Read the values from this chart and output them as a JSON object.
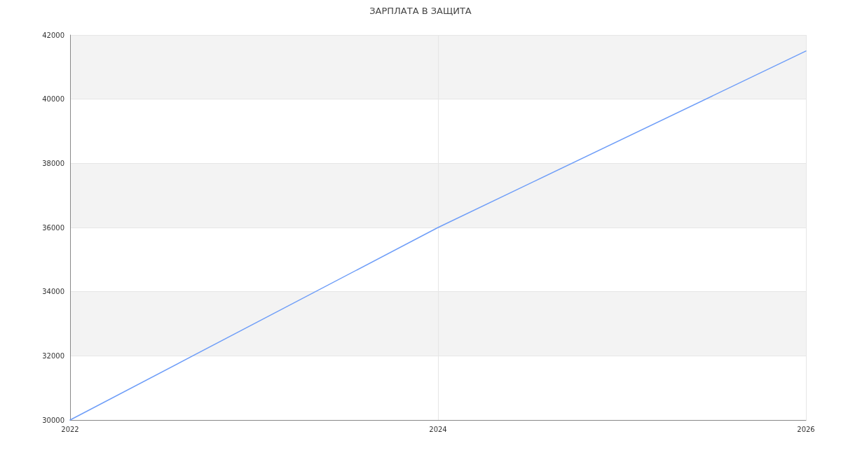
{
  "chart_data": {
    "type": "line",
    "title": "ЗАРПЛАТА В ЗАЩИТА",
    "x": [
      2022,
      2024,
      2026
    ],
    "series": [
      {
        "color": "#6f9ef8",
        "values": [
          30000,
          36000,
          41500
        ]
      }
    ],
    "xlim": [
      2022,
      2026
    ],
    "xticks": [
      2022,
      2024,
      2026
    ],
    "ylim": [
      30000,
      42000
    ],
    "yticks": [
      30000,
      32000,
      34000,
      36000,
      38000,
      40000,
      42000
    ],
    "grid": true,
    "marker": "none",
    "line_style": "solid"
  }
}
